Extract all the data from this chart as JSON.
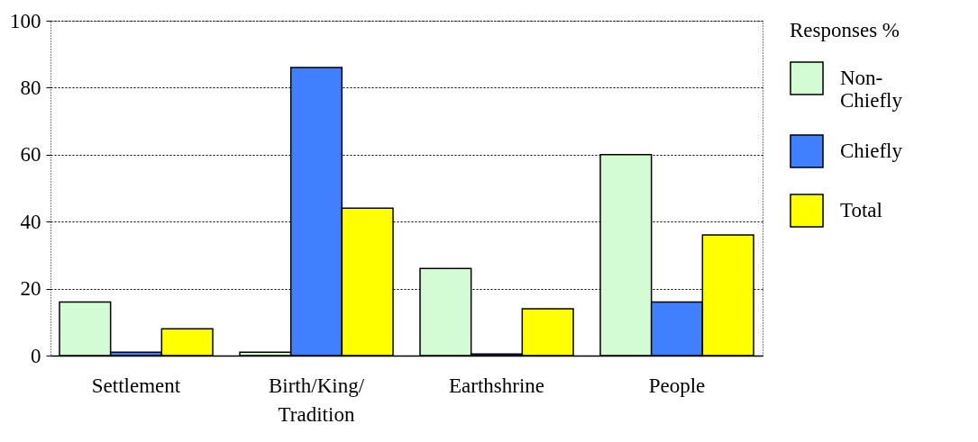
{
  "chart_data": {
    "type": "bar",
    "categories": [
      "Settlement",
      "Birth/King/Tradition",
      "Earthshrine",
      "People"
    ],
    "series": [
      {
        "name": "Non-Chiefly",
        "color": "#d4fcd4",
        "values": [
          16,
          1,
          26,
          60
        ]
      },
      {
        "name": "Chiefly",
        "color": "#4080ff",
        "values": [
          1,
          86,
          0.5,
          16
        ]
      },
      {
        "name": "Total",
        "color": "#ffff00",
        "values": [
          8,
          44,
          14,
          36
        ]
      }
    ],
    "legend_title": "Responses %",
    "legend": "right",
    "ylim": [
      0,
      100
    ],
    "yticks": [
      0,
      20,
      40,
      60,
      80,
      100
    ],
    "grid": "y"
  }
}
